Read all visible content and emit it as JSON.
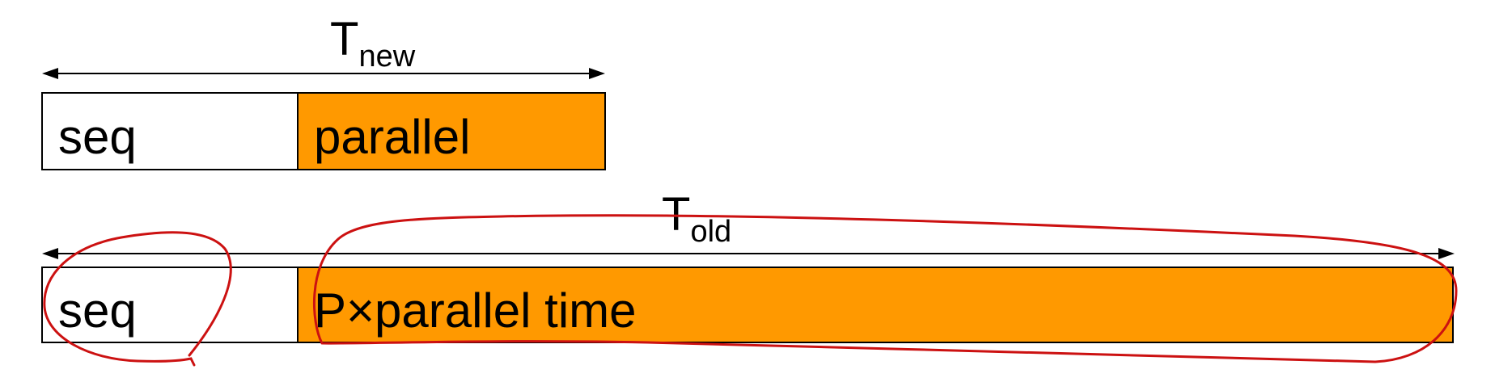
{
  "colors": {
    "parallel_fill": "#FF9900",
    "seq_fill": "#FFFFFF",
    "outline": "#000000",
    "annotation": "#CC1111"
  },
  "top": {
    "time_label": "T",
    "time_subscript": "new",
    "seq_label": "seq",
    "parallel_label": "parallel"
  },
  "bottom": {
    "time_label": "T",
    "time_subscript": "old",
    "seq_label": "seq",
    "parallel_label": "P×parallel time"
  }
}
